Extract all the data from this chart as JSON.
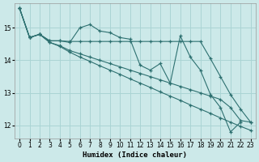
{
  "xlabel": "Humidex (Indice chaleur)",
  "bg_color": "#cce9e9",
  "grid_color": "#aad4d4",
  "line_color": "#2d7070",
  "xlim": [
    -0.5,
    23.5
  ],
  "ylim": [
    11.6,
    15.75
  ],
  "yticks": [
    12,
    13,
    14,
    15
  ],
  "xticks": [
    0,
    1,
    2,
    3,
    4,
    5,
    6,
    7,
    8,
    9,
    10,
    11,
    12,
    13,
    14,
    15,
    16,
    17,
    18,
    19,
    20,
    21,
    22,
    23
  ],
  "series1_x": [
    0,
    1,
    2,
    3,
    4,
    5,
    6,
    7,
    8,
    9,
    10,
    11,
    12,
    13,
    14,
    15,
    16,
    17,
    18,
    19,
    20,
    21,
    22
  ],
  "series1_y": [
    15.6,
    14.7,
    14.8,
    14.6,
    14.6,
    14.55,
    15.0,
    15.1,
    14.9,
    14.85,
    14.7,
    14.65,
    13.85,
    13.7,
    13.9,
    13.3,
    14.75,
    14.1,
    13.7,
    12.95,
    12.55,
    11.8,
    12.1
  ],
  "series2_x": [
    0,
    1,
    2,
    3,
    4,
    5,
    6,
    7,
    8,
    9,
    10,
    11,
    12,
    13,
    14,
    15,
    16,
    17,
    18,
    19,
    20,
    21,
    22,
    23
  ],
  "series2_y": [
    15.6,
    14.7,
    14.8,
    14.6,
    14.6,
    14.58,
    14.58,
    14.58,
    14.58,
    14.58,
    14.58,
    14.58,
    14.58,
    14.58,
    14.58,
    14.58,
    14.58,
    14.58,
    14.58,
    14.05,
    13.5,
    12.95,
    12.5,
    12.1
  ],
  "series3_x": [
    0,
    1,
    2,
    3,
    4,
    5,
    6,
    7,
    8,
    9,
    10,
    11,
    12,
    13,
    14,
    15,
    16,
    17,
    18,
    19,
    20,
    21,
    22,
    23
  ],
  "series3_y": [
    15.6,
    14.7,
    14.8,
    14.55,
    14.45,
    14.3,
    14.2,
    14.1,
    14.0,
    13.9,
    13.8,
    13.7,
    13.6,
    13.5,
    13.4,
    13.3,
    13.2,
    13.1,
    13.0,
    12.9,
    12.8,
    12.55,
    12.15,
    12.1
  ],
  "series4_x": [
    0,
    1,
    2,
    3,
    4,
    5,
    6,
    7,
    8,
    9,
    10,
    11,
    12,
    13,
    14,
    15,
    16,
    17,
    18,
    19,
    20,
    21,
    22,
    23
  ],
  "series4_y": [
    15.6,
    14.7,
    14.8,
    14.55,
    14.43,
    14.25,
    14.1,
    13.97,
    13.83,
    13.7,
    13.57,
    13.43,
    13.3,
    13.17,
    13.03,
    12.9,
    12.77,
    12.63,
    12.5,
    12.37,
    12.23,
    12.1,
    11.97,
    11.85
  ]
}
